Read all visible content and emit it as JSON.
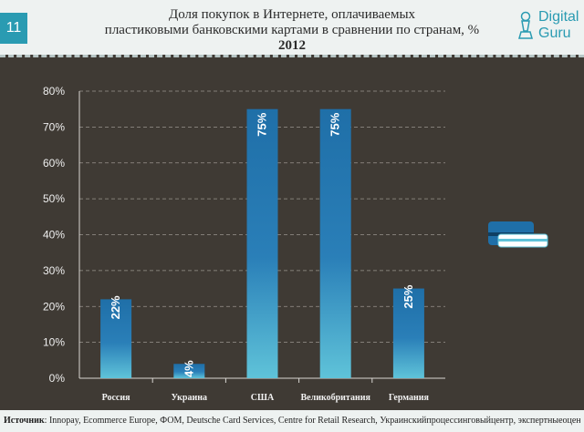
{
  "slide": {
    "number": "11"
  },
  "header": {
    "title_line1": "Доля покупок в Интернете, оплачиваемых",
    "title_line2": "пластиковыми банковскими картами в сравнении по странам, %",
    "year": "2012"
  },
  "logo": {
    "line1": "Digital",
    "line2": "Guru",
    "icon": "pawn-icon"
  },
  "colors": {
    "bar_top": "#1f6fa8",
    "bar_bottom": "#5fc3d9",
    "background": "#3f3a34",
    "accent": "#2a9bb2"
  },
  "footer": {
    "source_label": "Источник",
    "source_text": ": Innopay, Ecommerce Europe, ФОМ, Deutsche Card Services, Centre for Retail Research, Украинскийпроцессинговыйцентр, экспертныеоценки"
  },
  "decor": {
    "icon": "credit-cards-icon"
  },
  "chart_data": {
    "type": "bar",
    "title": "Доля покупок в Интернете, оплачиваемых пластиковыми банковскими картами в сравнении по странам, % 2012",
    "categories": [
      "Россия",
      "Украина",
      "США",
      "Великобритания",
      "Германия"
    ],
    "values": [
      22,
      4,
      75,
      75,
      25
    ],
    "data_labels": [
      "22%",
      "4%",
      "75%",
      "75%",
      "25%"
    ],
    "ylim": [
      0,
      80
    ],
    "yticks": [
      0,
      10,
      20,
      30,
      40,
      50,
      60,
      70,
      80
    ],
    "ytick_labels": [
      "0%",
      "10%",
      "20%",
      "30%",
      "40%",
      "50%",
      "60%",
      "70%",
      "80%"
    ],
    "grid": true,
    "xlabel": "",
    "ylabel": ""
  }
}
